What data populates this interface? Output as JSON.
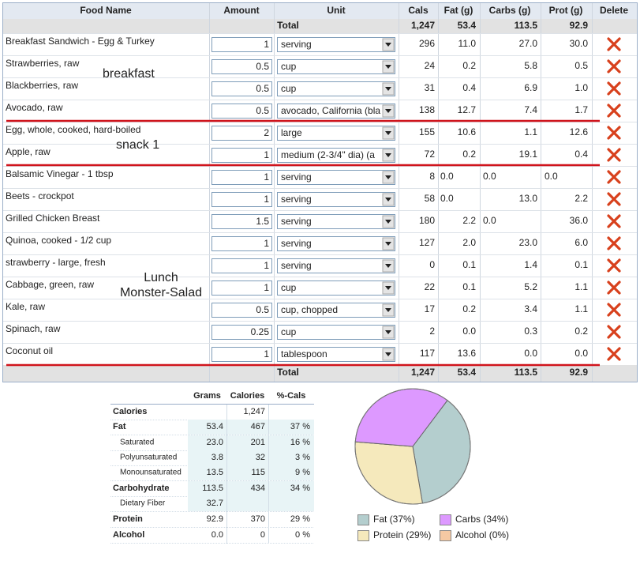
{
  "food_table": {
    "headers": [
      "Food Name",
      "Amount",
      "Unit",
      "Cals",
      "Fat (g)",
      "Carbs (g)",
      "Prot (g)",
      "Delete"
    ],
    "total_top": [
      "Total",
      "1,247",
      "53.4",
      "113.5",
      "92.9"
    ],
    "rows": [
      [
        "Breakfast Sandwich - Egg & Turkey",
        "1",
        "serving",
        "296",
        "11.0",
        "27.0",
        "30.0"
      ],
      [
        "Strawberries, raw",
        "0.5",
        "cup",
        "24",
        "0.2",
        "5.8",
        "0.5"
      ],
      [
        "Blackberries, raw",
        "0.5",
        "cup",
        "31",
        "0.4",
        "6.9",
        "1.0"
      ],
      [
        "Avocado, raw",
        "0.5",
        "avocado, California (bla",
        "138",
        "12.7",
        "7.4",
        "1.7"
      ],
      [
        "Egg, whole, cooked, hard-boiled",
        "2",
        "large",
        "155",
        "10.6",
        "1.1",
        "12.6"
      ],
      [
        "Apple, raw",
        "1",
        "medium (2-3/4\" dia) (a",
        "72",
        "0.2",
        "19.1",
        "0.4"
      ],
      [
        "Balsamic Vinegar - 1 tbsp",
        "1",
        "serving",
        "8",
        "0.0",
        "0.0",
        "0.0"
      ],
      [
        "Beets - crockpot",
        "1",
        "serving",
        "58",
        "0.0",
        "13.0",
        "2.2"
      ],
      [
        "Grilled Chicken Breast",
        "1.5",
        "serving",
        "180",
        "2.2",
        "0.0",
        "36.0"
      ],
      [
        "Quinoa, cooked - 1/2 cup",
        "1",
        "serving",
        "127",
        "2.0",
        "23.0",
        "6.0"
      ],
      [
        "strawberry - large, fresh",
        "1",
        "serving",
        "0",
        "0.1",
        "1.4",
        "0.1"
      ],
      [
        "Cabbage, green, raw",
        "1",
        "cup",
        "22",
        "0.1",
        "5.2",
        "1.1"
      ],
      [
        "Kale, raw",
        "0.5",
        "cup, chopped",
        "17",
        "0.2",
        "3.4",
        "1.1"
      ],
      [
        "Spinach, raw",
        "0.25",
        "cup",
        "2",
        "0.0",
        "0.3",
        "0.2"
      ],
      [
        "Coconut oil",
        "1",
        "tablespoon",
        "117",
        "13.6",
        "0.0",
        "0.0"
      ]
    ],
    "total_bottom": [
      "Total",
      "1,247",
      "53.4",
      "113.5",
      "92.9"
    ]
  },
  "annotations": [
    "breakfast",
    "snack 1",
    "Lunch",
    "Monster-Salad"
  ],
  "nutrition_table": {
    "headers": [
      "Grams",
      "Calories",
      "%-Cals"
    ],
    "rows": [
      [
        "Calories",
        null,
        "1,247",
        null
      ],
      [
        "Fat",
        "53.4",
        "467",
        "37 %"
      ],
      [
        "Saturated",
        "23.0",
        "201",
        "16 %"
      ],
      [
        "Polyunsaturated",
        "3.8",
        "32",
        "3 %"
      ],
      [
        "Monounsaturated",
        "13.5",
        "115",
        "9 %"
      ],
      [
        "Carbohydrate",
        "113.5",
        "434",
        "34 %"
      ],
      [
        "Dietary Fiber",
        "32.7",
        null,
        null
      ],
      [
        "Protein",
        "92.9",
        "370",
        "29 %"
      ],
      [
        "Alcohol",
        "0.0",
        "0",
        "0 %"
      ]
    ]
  },
  "pie": {
    "slices": [
      {
        "label": "Fat (37%)",
        "value": 37,
        "color": "#b4cece"
      },
      {
        "label": "Carbs (34%)",
        "value": 34,
        "color": "#dd99ff"
      },
      {
        "label": "Protein (29%)",
        "value": 29,
        "color": "#f5e9bc"
      },
      {
        "label": "Alcohol (0%)",
        "value": 0,
        "color": "#f5c9a3"
      }
    ]
  }
}
